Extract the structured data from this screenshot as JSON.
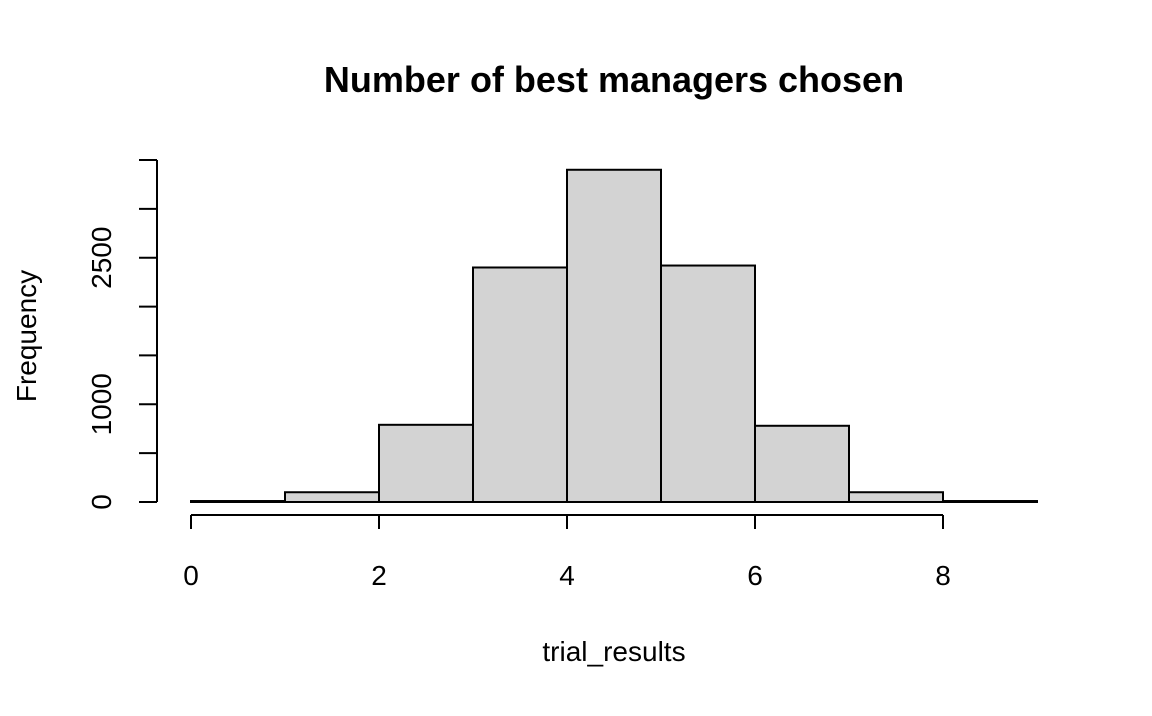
{
  "chart_data": {
    "type": "bar",
    "title": "Number of best managers chosen",
    "xlabel": "trial_results",
    "ylabel": "Frequency",
    "bins": [
      {
        "x0": 0,
        "x1": 1,
        "count": 10
      },
      {
        "x0": 1,
        "x1": 2,
        "count": 100
      },
      {
        "x0": 2,
        "x1": 3,
        "count": 790
      },
      {
        "x0": 3,
        "x1": 4,
        "count": 2400
      },
      {
        "x0": 4,
        "x1": 5,
        "count": 3400
      },
      {
        "x0": 5,
        "x1": 6,
        "count": 2420
      },
      {
        "x0": 6,
        "x1": 7,
        "count": 780
      },
      {
        "x0": 7,
        "x1": 8,
        "count": 100
      },
      {
        "x0": 8,
        "x1": 9,
        "count": 10
      }
    ],
    "xlim": [
      0,
      9
    ],
    "ylim": [
      0,
      3500
    ],
    "x_ticks": [
      0,
      2,
      4,
      6,
      8
    ],
    "x_tick_labels": [
      "0",
      "2",
      "4",
      "6",
      "8"
    ],
    "y_ticks": [
      0,
      500,
      1000,
      1500,
      2000,
      2500,
      3000,
      3500
    ],
    "y_tick_labels": [
      "0",
      "",
      "1000",
      "",
      "",
      "2500",
      "",
      ""
    ],
    "bar_fill": "#d3d3d3",
    "bar_stroke": "#000000",
    "grid": false,
    "legend": "none"
  }
}
